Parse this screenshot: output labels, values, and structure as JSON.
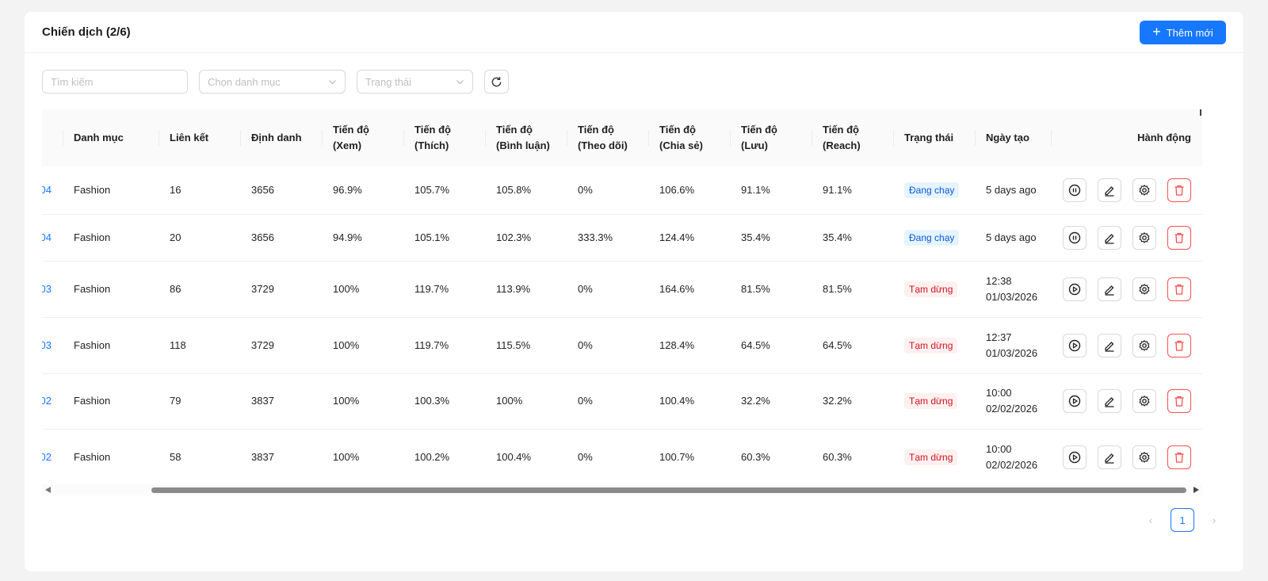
{
  "header": {
    "title": "Chiến dịch (2/6)",
    "add_label": "Thêm mới"
  },
  "filters": {
    "search_placeholder": "Tìm kiếm",
    "category_placeholder": "Chọn danh mục",
    "status_placeholder": "Trạng thái"
  },
  "columns": {
    "category": "Danh mục",
    "links": "Liên kết",
    "identifier": "Định danh",
    "views_1": "Tiến độ",
    "views_2": "(Xem)",
    "likes_1": "Tiến độ",
    "likes_2": "(Thích)",
    "comments_1": "Tiến độ",
    "comments_2": "(Bình luận)",
    "follows_1": "Tiến độ",
    "follows_2": "(Theo dõi)",
    "shares_1": "Tiến độ",
    "shares_2": "(Chia sẻ)",
    "saves_1": "Tiến độ",
    "saves_2": "(Lưu)",
    "reach_1": "Tiến độ",
    "reach_2": "(Reach)",
    "status": "Trạng thái",
    "created": "Ngày tạo",
    "actions": "Hành động"
  },
  "rows": [
    {
      "id_suffix": "04",
      "category": "Fashion",
      "links": "16",
      "identifier": "3656",
      "views": "96.9%",
      "likes": "105.7%",
      "comments": "105.8%",
      "follows": "0%",
      "shares": "106.6%",
      "saves": "91.1%",
      "reach": "91.1%",
      "status": "Đang chạy",
      "status_kind": "run",
      "created_1": "5 days ago",
      "created_2": ""
    },
    {
      "id_suffix": "04",
      "category": "Fashion",
      "links": "20",
      "identifier": "3656",
      "views": "94.9%",
      "likes": "105.1%",
      "comments": "102.3%",
      "follows": "333.3%",
      "shares": "124.4%",
      "saves": "35.4%",
      "reach": "35.4%",
      "status": "Đang chạy",
      "status_kind": "run",
      "created_1": "5 days ago",
      "created_2": ""
    },
    {
      "id_suffix": "03",
      "category": "Fashion",
      "links": "86",
      "identifier": "3729",
      "views": "100%",
      "likes": "119.7%",
      "comments": "113.9%",
      "follows": "0%",
      "shares": "164.6%",
      "saves": "81.5%",
      "reach": "81.5%",
      "status": "Tạm dừng",
      "status_kind": "pause",
      "created_1": "12:38",
      "created_2": "01/03/2026"
    },
    {
      "id_suffix": "03",
      "category": "Fashion",
      "links": "118",
      "identifier": "3729",
      "views": "100%",
      "likes": "119.7%",
      "comments": "115.5%",
      "follows": "0%",
      "shares": "128.4%",
      "saves": "64.5%",
      "reach": "64.5%",
      "status": "Tạm dừng",
      "status_kind": "pause",
      "created_1": "12:37",
      "created_2": "01/03/2026"
    },
    {
      "id_suffix": "02",
      "category": "Fashion",
      "links": "79",
      "identifier": "3837",
      "views": "100%",
      "likes": "100.3%",
      "comments": "100%",
      "follows": "0%",
      "shares": "100.4%",
      "saves": "32.2%",
      "reach": "32.2%",
      "status": "Tạm dừng",
      "status_kind": "pause",
      "created_1": "10:00",
      "created_2": "02/02/2026"
    },
    {
      "id_suffix": "02",
      "category": "Fashion",
      "links": "58",
      "identifier": "3837",
      "views": "100%",
      "likes": "100.2%",
      "comments": "100.4%",
      "follows": "0%",
      "shares": "100.7%",
      "saves": "60.3%",
      "reach": "60.3%",
      "status": "Tạm dừng",
      "status_kind": "pause",
      "created_1": "10:00",
      "created_2": "02/02/2026"
    }
  ],
  "pagination": {
    "current": "1"
  },
  "colors": {
    "primary": "#1677ff",
    "danger": "#ff4d4f",
    "run_bg": "#e6f4ff",
    "pause_bg": "#fff1f0"
  },
  "icons": [
    "plus-icon",
    "search-icon",
    "chevron-down-icon",
    "refresh-icon",
    "pause-icon",
    "play-icon",
    "edit-icon",
    "settings-icon",
    "delete-icon",
    "chevron-left-icon",
    "chevron-right-icon"
  ]
}
